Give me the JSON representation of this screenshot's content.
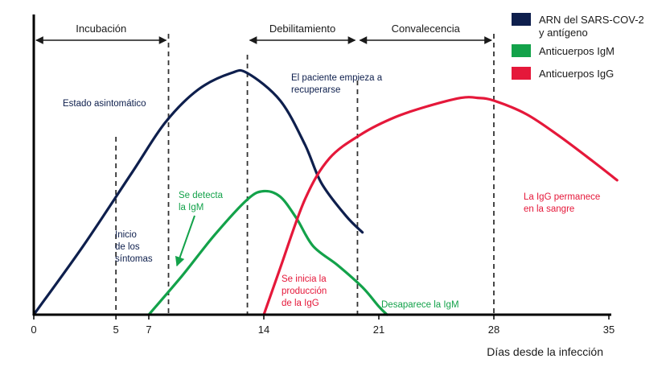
{
  "chart_data": {
    "type": "line",
    "xlabel": "Días desde la infección",
    "x_ticks": [
      0,
      5,
      7,
      14,
      21,
      28,
      35
    ],
    "xlim": [
      0,
      35
    ],
    "ylim": [
      0,
      100
    ],
    "grid": false,
    "legend_position": "top-right",
    "series": [
      {
        "name": "ARN del SARS-COV-2 y antígeno",
        "color": "#0e1f4d",
        "points": [
          [
            0,
            0
          ],
          [
            3,
            25
          ],
          [
            6,
            52
          ],
          [
            8,
            70
          ],
          [
            10,
            82
          ],
          [
            12,
            88
          ],
          [
            13,
            88
          ],
          [
            15,
            78
          ],
          [
            16.5,
            62
          ],
          [
            17.5,
            48
          ],
          [
            19,
            36
          ],
          [
            20,
            30
          ]
        ]
      },
      {
        "name": "Anticuerpos IgM",
        "color": "#13a24a",
        "points": [
          [
            7,
            0
          ],
          [
            9,
            14
          ],
          [
            11,
            29
          ],
          [
            13,
            42
          ],
          [
            14,
            45
          ],
          [
            15,
            43
          ],
          [
            16,
            35
          ],
          [
            17,
            25
          ],
          [
            18.5,
            18
          ],
          [
            20,
            10
          ],
          [
            21,
            3
          ],
          [
            21.5,
            0
          ]
        ]
      },
      {
        "name": "Anticuerpos IgG",
        "color": "#e5183a",
        "points": [
          [
            14,
            0
          ],
          [
            15,
            17
          ],
          [
            16.5,
            42
          ],
          [
            18,
            57
          ],
          [
            20,
            66
          ],
          [
            22,
            72
          ],
          [
            24,
            76
          ],
          [
            26,
            79
          ],
          [
            27,
            79
          ],
          [
            28,
            78
          ],
          [
            30,
            73
          ],
          [
            32,
            65
          ],
          [
            34,
            56
          ],
          [
            35.5,
            49
          ]
        ]
      }
    ],
    "phases": [
      {
        "label": "Incubación",
        "from": 0,
        "to": 8.2
      },
      {
        "label": "Debilitamiento",
        "from": 13,
        "to": 19.7
      },
      {
        "label": "Convalecencia",
        "from": 19.7,
        "to": 28
      }
    ],
    "vlines": [
      5,
      8.2,
      13,
      19.7,
      28
    ],
    "annotations": [
      {
        "id": "asintomatico",
        "lines": [
          "Estado asintomático"
        ],
        "color": "#0e1f4d"
      },
      {
        "id": "recuperarse",
        "lines": [
          "El paciente empieza a",
          "recuperarse"
        ],
        "color": "#0e1f4d"
      },
      {
        "id": "sintomas",
        "lines": [
          "Inicio",
          "de los",
          "síntomas"
        ],
        "color": "#0e1f4d"
      },
      {
        "id": "detecta",
        "lines": [
          "Se detecta",
          "la IgM"
        ],
        "color": "#13a24a"
      },
      {
        "id": "inicia-igg",
        "lines": [
          "Se inicia la",
          "producción",
          "de la IgG"
        ],
        "color": "#e5183a"
      },
      {
        "id": "desaparece",
        "lines": [
          "Desaparece la IgM"
        ],
        "color": "#13a24a"
      },
      {
        "id": "permanece",
        "lines": [
          "La IgG permanece",
          "en la sangre"
        ],
        "color": "#e5183a"
      }
    ]
  }
}
